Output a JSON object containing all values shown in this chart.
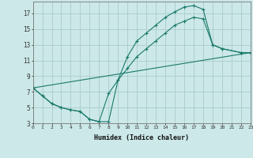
{
  "xlabel": "Humidex (Indice chaleur)",
  "bg_color": "#cce8e8",
  "grid_color": "#aacccc",
  "line_color": "#1a7a6a",
  "xlim": [
    0,
    23
  ],
  "ylim": [
    3,
    18.5
  ],
  "xticks": [
    0,
    1,
    2,
    3,
    4,
    5,
    6,
    7,
    8,
    9,
    10,
    11,
    12,
    13,
    14,
    15,
    16,
    17,
    18,
    19,
    20,
    21,
    22,
    23
  ],
  "yticks": [
    3,
    5,
    7,
    9,
    11,
    13,
    15,
    17
  ],
  "series": [
    {
      "x": [
        0,
        1,
        2,
        3,
        4,
        5,
        6,
        7,
        8,
        9,
        10,
        11,
        12,
        13,
        14,
        15,
        16,
        17,
        18,
        19,
        20,
        22,
        23
      ],
      "y": [
        7.5,
        6.5,
        5.5,
        5.0,
        4.7,
        4.5,
        3.5,
        3.2,
        3.2,
        8.5,
        11.5,
        13.5,
        14.5,
        15.5,
        16.5,
        17.2,
        17.8,
        18.0,
        17.5,
        13.0,
        12.5,
        12.0,
        12.0
      ]
    },
    {
      "x": [
        0,
        1,
        2,
        3,
        4,
        5,
        6,
        7,
        8,
        9,
        10,
        11,
        12,
        13,
        14,
        15,
        16,
        17,
        18,
        19,
        20,
        22,
        23
      ],
      "y": [
        7.5,
        6.5,
        5.5,
        5.0,
        4.7,
        4.5,
        3.5,
        3.2,
        6.8,
        8.5,
        10.0,
        11.5,
        12.5,
        13.5,
        14.5,
        15.5,
        16.0,
        16.5,
        16.3,
        13.0,
        12.5,
        12.0,
        12.0
      ]
    },
    {
      "x": [
        0,
        23
      ],
      "y": [
        7.5,
        12.0
      ]
    }
  ]
}
